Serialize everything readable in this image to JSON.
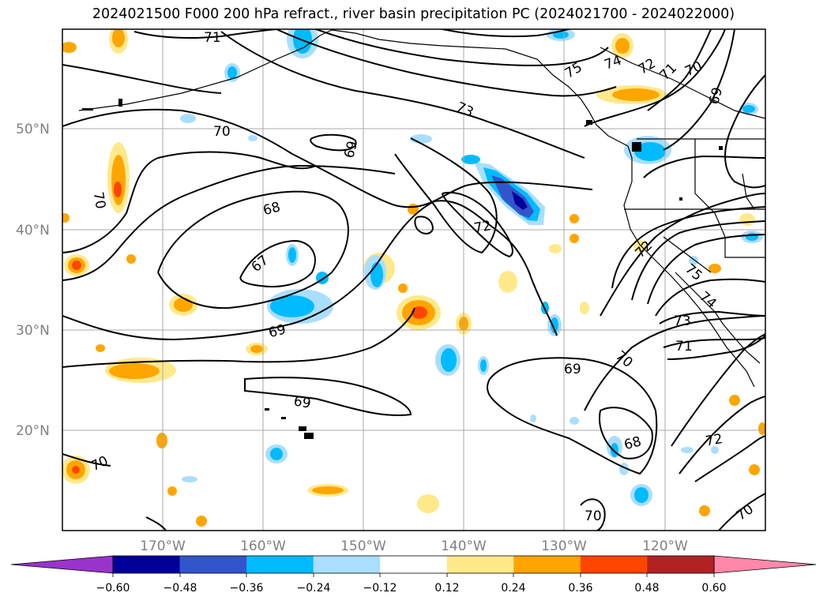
{
  "title": "2024021500 F000 200 hPa refract., river basin precipitation PC (2024021700 - 2024022000)",
  "lat_labels": [
    "50°N",
    "40°N",
    "30°N",
    "20°N"
  ],
  "lon_labels": [
    "170°W",
    "160°W",
    "150°W",
    "140°W",
    "130°W",
    "120°W"
  ],
  "contour_labels": [
    "71",
    "70",
    "70",
    "69",
    "68",
    "67",
    "69",
    "69",
    "73",
    "75",
    "74",
    "72",
    "71",
    "70",
    "69",
    "72",
    "72",
    "75",
    "74",
    "73",
    "71",
    "70",
    "69",
    "68",
    "72",
    "70",
    "70",
    "70"
  ],
  "colorbar": {
    "ticks": [
      "−0.60",
      "−0.48",
      "−0.36",
      "−0.24",
      "−0.12",
      "0.12",
      "0.24",
      "0.36",
      "0.48",
      "0.60"
    ],
    "under_color": "#9933cc",
    "over_color": "#ff88aa",
    "colors": [
      "#000099",
      "#3355cc",
      "#00bbff",
      "#aadeff",
      "#ffffff",
      "#ffe98a",
      "#ffa500",
      "#ff4500",
      "#b22222"
    ]
  },
  "colors": {
    "coast": "#000000",
    "grid": "#aaaaaa",
    "contour": "#000000"
  }
}
